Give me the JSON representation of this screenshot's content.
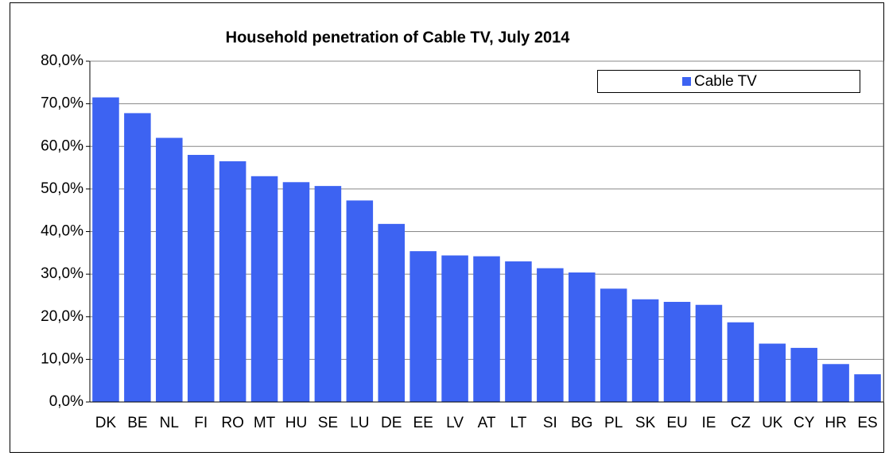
{
  "chart_data": {
    "type": "bar",
    "title": "Household penetration of Cable TV, July 2014",
    "categories": [
      "DK",
      "BE",
      "NL",
      "FI",
      "RO",
      "MT",
      "HU",
      "SE",
      "LU",
      "DE",
      "EE",
      "LV",
      "AT",
      "LT",
      "SI",
      "BG",
      "PL",
      "SK",
      "EU",
      "IE",
      "CZ",
      "UK",
      "CY",
      "HR",
      "ES"
    ],
    "series": [
      {
        "name": "Cable TV",
        "color": "#3d63f2",
        "values": [
          71.5,
          67.8,
          62.0,
          58.0,
          56.5,
          53.0,
          51.6,
          50.7,
          47.3,
          41.8,
          35.4,
          34.4,
          34.2,
          33.0,
          31.4,
          30.4,
          26.6,
          24.1,
          23.5,
          22.8,
          18.7,
          13.7,
          12.7,
          8.9,
          6.5
        ]
      }
    ],
    "ylim": [
      0,
      80
    ],
    "yticks": [
      {
        "value": 0,
        "label": "0,0%"
      },
      {
        "value": 10,
        "label": "10,0%"
      },
      {
        "value": 20,
        "label": "20,0%"
      },
      {
        "value": 30,
        "label": "30,0%"
      },
      {
        "value": 40,
        "label": "40,0%"
      },
      {
        "value": 50,
        "label": "50,0%"
      },
      {
        "value": 60,
        "label": "60,0%"
      },
      {
        "value": 70,
        "label": "70,0%"
      },
      {
        "value": 80,
        "label": "80,0%"
      }
    ],
    "grid": true,
    "legend": "top-right"
  }
}
